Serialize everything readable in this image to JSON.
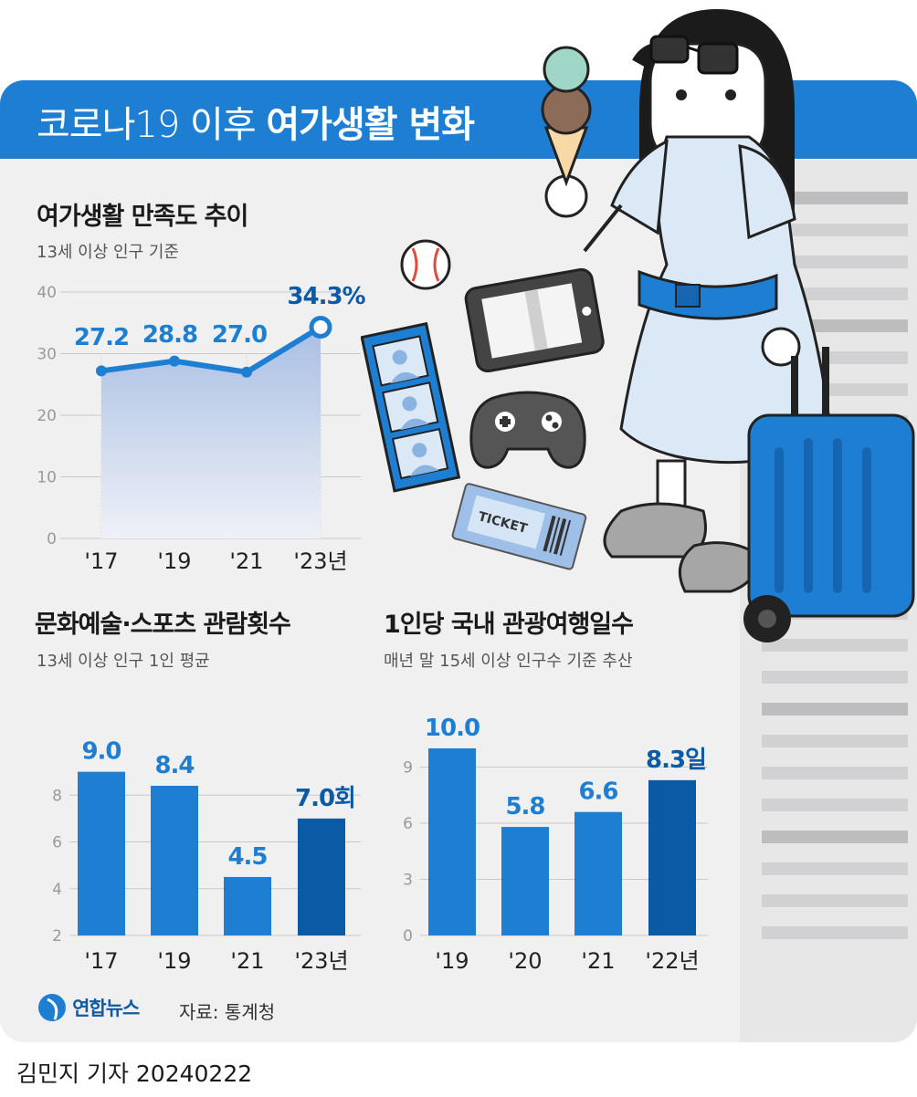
{
  "header": {
    "title_light": "코로나19 이후",
    "title_bold": "여가생활 변화"
  },
  "colors": {
    "accent": "#1e7fd2",
    "dark_accent": "#0a5aa5",
    "bar": "#1e7fd2",
    "bar_highlight": "#0a5aa5",
    "card": "#f0f0f1"
  },
  "illustration": {
    "ticket_text": "TICKET",
    "icons": [
      "baseball-icon",
      "tablet-icon",
      "photo-strip-icon",
      "game-controller-icon",
      "ticket-icon",
      "ice-cream-icon",
      "suitcase-icon"
    ]
  },
  "chart_data": [
    {
      "type": "line",
      "title": "여가생활 만족도 추이",
      "subtitle": "13세 이상 인구 기준",
      "categories": [
        "'17",
        "'19",
        "'21",
        "'23년"
      ],
      "values": [
        27.2,
        28.8,
        27.0,
        34.3
      ],
      "labels": [
        "27.2",
        "28.8",
        "27.0",
        "34.3%"
      ],
      "ylim": [
        0,
        40
      ],
      "yticks": [
        "0",
        "10",
        "20",
        "30",
        "40"
      ],
      "grid": true
    },
    {
      "type": "bar",
      "title": "문화예술·스포츠 관람횟수",
      "subtitle": "13세 이상 인구 1인 평균",
      "categories": [
        "'17",
        "'19",
        "'21",
        "'23년"
      ],
      "values": [
        9.0,
        8.4,
        4.5,
        7.0
      ],
      "labels": [
        "9.0",
        "8.4",
        "4.5",
        "7.0회"
      ],
      "ylim": [
        2,
        10
      ],
      "yticks": [
        "2",
        "4",
        "6",
        "8"
      ],
      "grid": true
    },
    {
      "type": "bar",
      "title": "1인당 국내 관광여행일수",
      "subtitle": "매년 말 15세 이상 인구수 기준 추산",
      "categories": [
        "'19",
        "'20",
        "'21",
        "'22년"
      ],
      "values": [
        10.0,
        5.8,
        6.6,
        8.3
      ],
      "labels": [
        "10.0",
        "5.8",
        "6.6",
        "8.3일"
      ],
      "ylim": [
        0,
        10
      ],
      "yticks": [
        "0",
        "3",
        "6",
        "9"
      ],
      "grid": true
    }
  ],
  "footer": {
    "logo": "연합뉴스",
    "source": "자료: 통계청",
    "byline": "김민지 기자  20240222"
  }
}
